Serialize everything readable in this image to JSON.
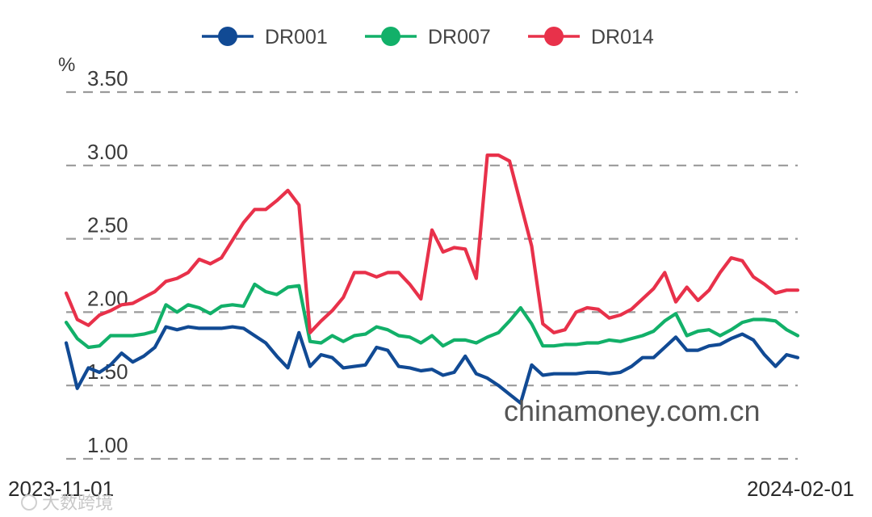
{
  "chart_data": {
    "type": "line",
    "y_unit": "%",
    "ylim": [
      1.0,
      3.5
    ],
    "y_ticks": [
      "3.50",
      "3.00",
      "2.50",
      "2.00",
      "1.50",
      "1.00"
    ],
    "y_tick_values": [
      3.5,
      3.0,
      2.5,
      2.0,
      1.5,
      1.0
    ],
    "x_start_label": "2023-11-01",
    "x_end_label": "2024-02-01",
    "grid": "horizontal-dashed",
    "legend_position": "top-center",
    "series": [
      {
        "name": "DR001",
        "color": "#114a94",
        "values": [
          1.79,
          1.48,
          1.62,
          1.59,
          1.64,
          1.72,
          1.66,
          1.7,
          1.76,
          1.9,
          1.88,
          1.9,
          1.89,
          1.89,
          1.89,
          1.9,
          1.89,
          1.84,
          1.79,
          1.7,
          1.62,
          1.86,
          1.63,
          1.71,
          1.69,
          1.62,
          1.63,
          1.64,
          1.76,
          1.74,
          1.63,
          1.62,
          1.6,
          1.61,
          1.57,
          1.59,
          1.7,
          1.58,
          1.55,
          1.5,
          1.44,
          1.38,
          1.64,
          1.57,
          1.58,
          1.58,
          1.58,
          1.59,
          1.59,
          1.58,
          1.59,
          1.63,
          1.69,
          1.69,
          1.76,
          1.83,
          1.74,
          1.74,
          1.77,
          1.78,
          1.82,
          1.85,
          1.81,
          1.71,
          1.63,
          1.71,
          1.69
        ]
      },
      {
        "name": "DR007",
        "color": "#12b069",
        "values": [
          1.93,
          1.82,
          1.76,
          1.77,
          1.84,
          1.84,
          1.84,
          1.85,
          1.87,
          2.05,
          2.0,
          2.05,
          2.03,
          1.99,
          2.04,
          2.05,
          2.04,
          2.19,
          2.14,
          2.12,
          2.17,
          2.18,
          1.8,
          1.79,
          1.84,
          1.8,
          1.84,
          1.85,
          1.9,
          1.88,
          1.84,
          1.83,
          1.79,
          1.84,
          1.77,
          1.81,
          1.81,
          1.79,
          1.83,
          1.86,
          1.94,
          2.03,
          1.92,
          1.77,
          1.77,
          1.78,
          1.78,
          1.79,
          1.79,
          1.81,
          1.8,
          1.82,
          1.84,
          1.87,
          1.94,
          1.99,
          1.84,
          1.87,
          1.88,
          1.84,
          1.88,
          1.93,
          1.95,
          1.95,
          1.94,
          1.88,
          1.84
        ]
      },
      {
        "name": "DR014",
        "color": "#e8314a",
        "values": [
          2.13,
          1.95,
          1.91,
          1.98,
          2.01,
          2.05,
          2.06,
          2.1,
          2.14,
          2.21,
          2.23,
          2.27,
          2.36,
          2.33,
          2.37,
          2.49,
          2.61,
          2.7,
          2.7,
          2.76,
          2.83,
          2.73,
          1.86,
          1.94,
          2.01,
          2.1,
          2.27,
          2.27,
          2.24,
          2.27,
          2.27,
          2.19,
          2.09,
          2.56,
          2.41,
          2.44,
          2.43,
          2.23,
          3.07,
          3.07,
          3.03,
          2.74,
          2.45,
          1.92,
          1.86,
          1.88,
          2.0,
          2.03,
          2.02,
          1.96,
          1.98,
          2.02,
          2.09,
          2.16,
          2.27,
          2.07,
          2.17,
          2.08,
          2.15,
          2.27,
          2.37,
          2.35,
          2.24,
          2.19,
          2.13,
          2.15,
          2.15
        ]
      }
    ]
  },
  "watermark": {
    "text": "chinamoney.com.cn",
    "source_text": "大数跨境"
  },
  "icons": {
    "source_icon": "camera-logo-icon"
  }
}
